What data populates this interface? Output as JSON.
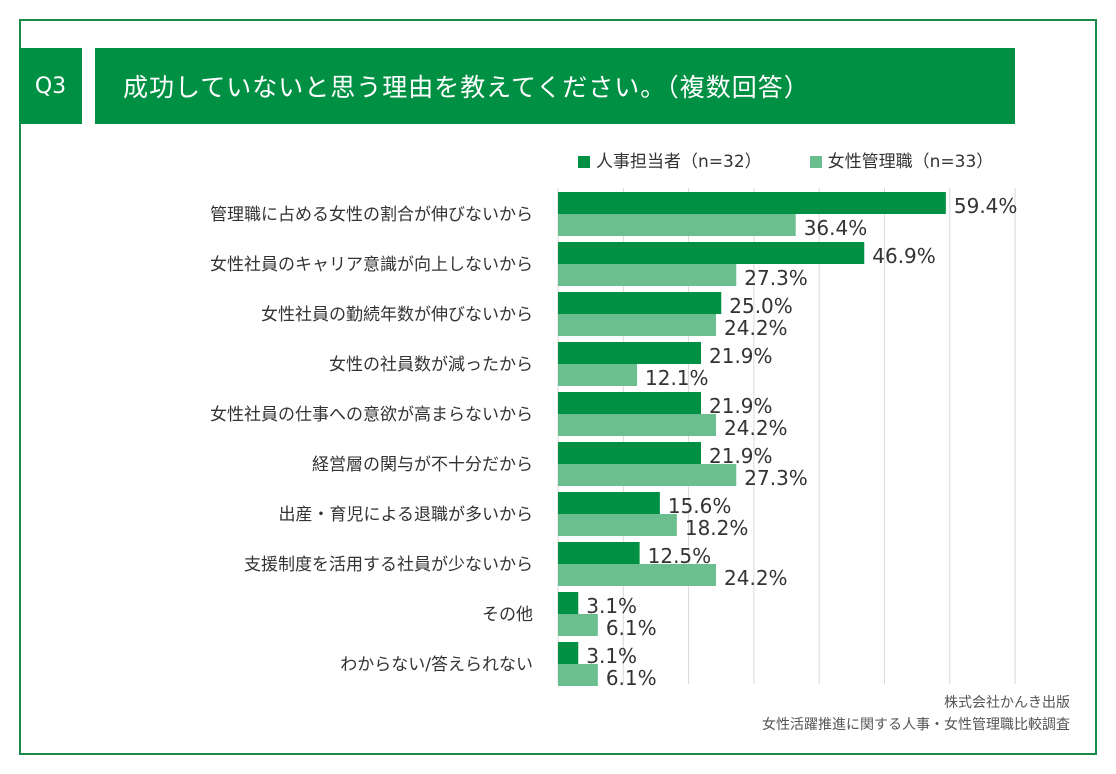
{
  "header": {
    "question_no": "Q3",
    "title": "成功していないと思う理由を教えてください。（複数回答）"
  },
  "source": {
    "line1": "株式会社かんき出版",
    "line2": "女性活躍推進に関する人事・女性管理職比較調査"
  },
  "chart_data": {
    "type": "bar",
    "orientation": "horizontal",
    "categories": [
      "管理職に占める女性の割合が伸びないから",
      "女性社員のキャリア意識が向上しないから",
      "女性社員の勤続年数が伸びないから",
      "女性の社員数が減ったから",
      "女性社員の仕事への意欲が高まらないから",
      "経営層の関与が不十分だから",
      "出産・育児による退職が多いから",
      "支援制度を活用する社員が少ないから",
      "その他",
      "わからない/答えられない"
    ],
    "series": [
      {
        "name": "人事担当者（n=32）",
        "color": "#009043",
        "values": [
          59.4,
          46.9,
          25.0,
          21.9,
          21.9,
          21.9,
          15.6,
          12.5,
          3.1,
          3.1
        ]
      },
      {
        "name": "女性管理職（n=33）",
        "color": "#6bbf8e",
        "values": [
          36.4,
          27.3,
          24.2,
          12.1,
          24.2,
          27.3,
          18.2,
          24.2,
          6.1,
          6.1
        ]
      }
    ],
    "xlim": [
      0,
      70
    ],
    "grid": true,
    "legend": "top-right",
    "value_format": "%"
  }
}
